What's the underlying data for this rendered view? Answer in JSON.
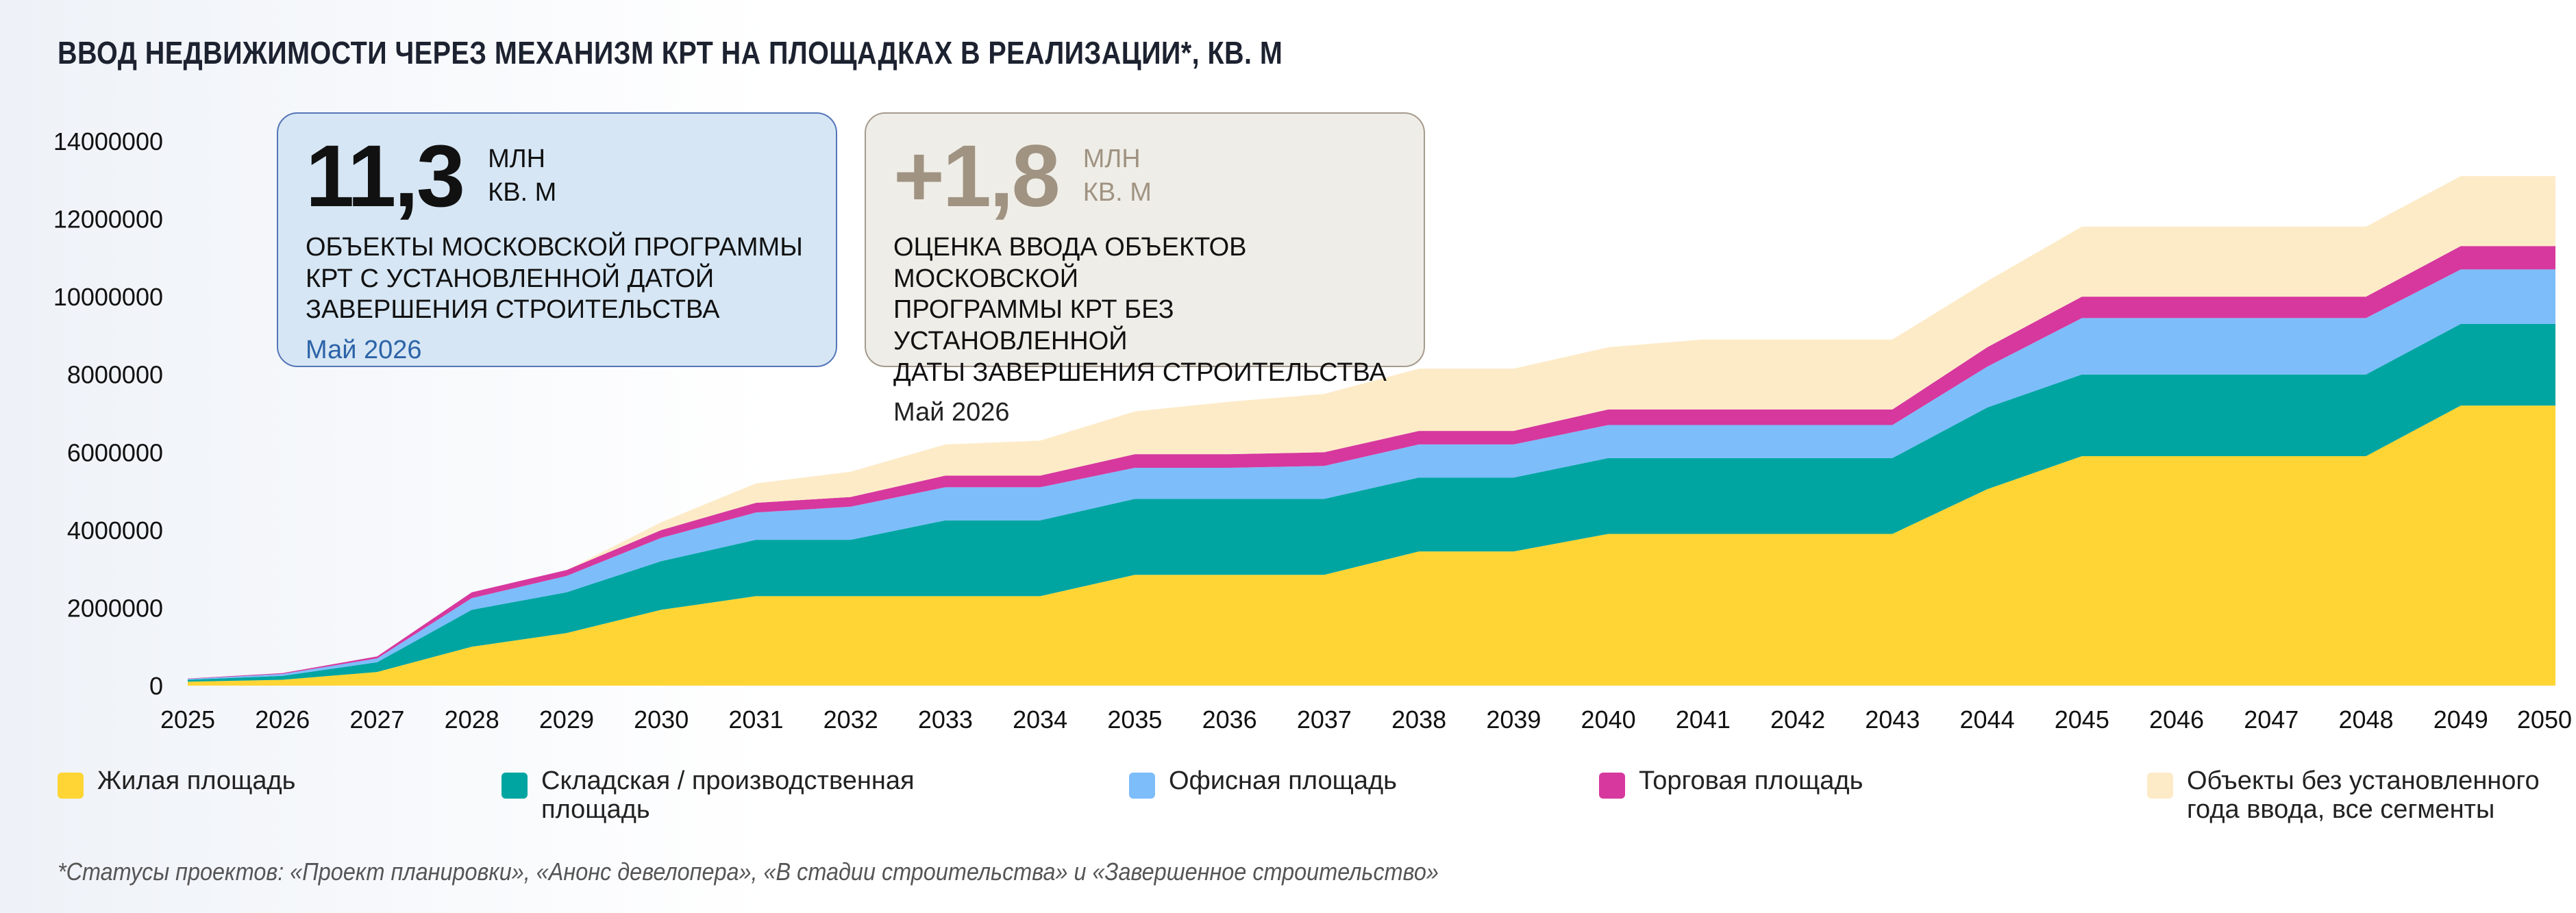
{
  "title": "ВВОД НЕДВИЖИМОСТИ ЧЕРЕЗ МЕХАНИЗМ КРТ НА ПЛОЩАДКАХ В РЕАЛИЗАЦИИ*, КВ. М",
  "cards": [
    {
      "value": "11,3",
      "unit_line1": "МЛН",
      "unit_line2": "КВ. М",
      "desc_line1": "ОБЪЕКТЫ МОСКОВСКОЙ ПРОГРАММЫ",
      "desc_line2": "КРТ С УСТАНОВЛЕННОЙ ДАТОЙ",
      "desc_line3": "ЗАВЕРШЕНИЯ СТРОИТЕЛЬСТВА",
      "date": "Май 2026"
    },
    {
      "value": "+1,8",
      "unit_line1": "МЛН",
      "unit_line2": "КВ. М",
      "desc_line1": "ОЦЕНКА ВВОДА ОБЪЕКТОВ МОСКОВСКОЙ",
      "desc_line2": "ПРОГРАММЫ КРТ БЕЗ УСТАНОВЛЕННОЙ",
      "desc_line3": "ДАТЫ ЗАВЕРШЕНИЯ СТРОИТЕЛЬСТВА",
      "date": "Май 2026"
    }
  ],
  "legend": [
    {
      "line1": "Жилая площадь",
      "line2": "",
      "color": "#fed534"
    },
    {
      "line1": "Складская / производственная",
      "line2": "площадь",
      "color": "#00a5a2"
    },
    {
      "line1": "Офисная площадь",
      "line2": "",
      "color": "#7dbdfa"
    },
    {
      "line1": "Торговая площадь",
      "line2": "",
      "color": "#d6389e"
    },
    {
      "line1": "Объекты без установленного",
      "line2": "года ввода, все сегменты",
      "color": "#fdebc8"
    }
  ],
  "footnote": "*Статусы проектов: «Проект планировки», «Анонс девелопера», «В стадии строительства» и «Завершенное строительство»",
  "chart_data": {
    "type": "area",
    "stacked": true,
    "x": [
      "2025",
      "2026",
      "2027",
      "2028",
      "2029",
      "2030",
      "2031",
      "2032",
      "2033",
      "2034",
      "2035",
      "2036",
      "2037",
      "2038",
      "2039",
      "2040",
      "2041",
      "2042",
      "2043",
      "2044",
      "2045",
      "2046",
      "2047",
      "2048",
      "2049",
      "2050"
    ],
    "yticks": [
      "0",
      "2000000",
      "4000000",
      "6000000",
      "8000000",
      "10000000",
      "12000000",
      "14000000"
    ],
    "ylim": [
      0,
      14000000
    ],
    "series": [
      {
        "name": "Жилая площадь",
        "color": "#fed534",
        "values": [
          100000,
          150000,
          350000,
          1000000,
          1350000,
          1950000,
          2300000,
          2300000,
          2300000,
          2300000,
          2850000,
          2850000,
          2850000,
          3450000,
          3450000,
          3900000,
          3900000,
          3900000,
          3900000,
          5050000,
          5900000,
          5900000,
          5900000,
          5900000,
          7200000,
          7200000
        ]
      },
      {
        "name": "Складская / производственная площадь",
        "color": "#00a5a2",
        "values": [
          50000,
          100000,
          250000,
          950000,
          1050000,
          1250000,
          1450000,
          1450000,
          1950000,
          1950000,
          1950000,
          1950000,
          1950000,
          1900000,
          1900000,
          1950000,
          1950000,
          1950000,
          1950000,
          2100000,
          2100000,
          2100000,
          2100000,
          2100000,
          2100000,
          2100000
        ]
      },
      {
        "name": "Офисная площадь",
        "color": "#7dbdfa",
        "values": [
          20000,
          50000,
          100000,
          300000,
          420000,
          600000,
          700000,
          850000,
          850000,
          850000,
          800000,
          800000,
          850000,
          850000,
          850000,
          850000,
          850000,
          850000,
          850000,
          1050000,
          1450000,
          1450000,
          1450000,
          1450000,
          1400000,
          1400000
        ]
      },
      {
        "name": "Торговая площадь",
        "color": "#d6389e",
        "values": [
          10000,
          20000,
          50000,
          150000,
          150000,
          200000,
          250000,
          250000,
          300000,
          300000,
          350000,
          350000,
          350000,
          350000,
          350000,
          400000,
          400000,
          400000,
          400000,
          500000,
          550000,
          550000,
          550000,
          550000,
          600000,
          600000
        ]
      },
      {
        "name": "Объекты без установленного года ввода, все сегменты",
        "color": "#fdebc8",
        "values": [
          0,
          0,
          0,
          0,
          0,
          200000,
          500000,
          650000,
          800000,
          900000,
          1100000,
          1350000,
          1500000,
          1600000,
          1600000,
          1600000,
          1800000,
          1800000,
          1800000,
          1700000,
          1800000,
          1800000,
          1800000,
          1800000,
          1800000,
          1800000
        ]
      }
    ]
  }
}
